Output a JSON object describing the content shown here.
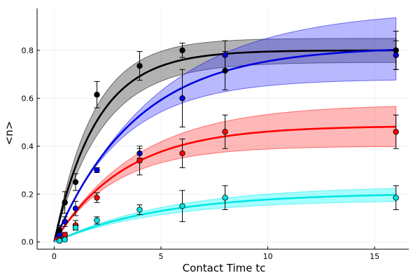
{
  "chart_data": {
    "type": "line",
    "title": "",
    "xlabel": "Contact Time tc",
    "ylabel": "<n>",
    "xlim": [
      -0.8,
      16.6
    ],
    "ylim": [
      -0.03,
      0.975
    ],
    "xticks": [
      0,
      5,
      10,
      15
    ],
    "yticks": [
      0.0,
      0.2,
      0.4,
      0.6,
      0.8
    ],
    "xtick_labels": [
      "0",
      "5",
      "10",
      "15"
    ],
    "ytick_labels": [
      "0.0",
      "0.2",
      "0.4",
      "0.6",
      "0.8"
    ],
    "grid": true,
    "legend": "none",
    "colors": {
      "axis": "#000000",
      "grid": "#e6e6e6"
    },
    "series": [
      {
        "color": "#000000",
        "band_color": "#555555",
        "band_alpha": 0.45,
        "fit": {
          "plateau": 0.8,
          "rate": 0.5
        },
        "band_upper": {
          "plateau": 0.85,
          "rate": 0.55
        },
        "band_lower": {
          "plateau": 0.75,
          "rate": 0.45
        },
        "points": [
          {
            "x": 0.25,
            "y": 0.05,
            "err": 0.02
          },
          {
            "x": 0.5,
            "y": 0.165,
            "err": 0.045
          },
          {
            "x": 1,
            "y": 0.25,
            "err": 0.035
          },
          {
            "x": 2,
            "y": 0.615,
            "err": 0.055
          },
          {
            "x": 4,
            "y": 0.735,
            "err": 0.06
          },
          {
            "x": 6,
            "y": 0.8,
            "err": 0.03
          },
          {
            "x": 8,
            "y": 0.715,
            "err": 0.08
          },
          {
            "x": 16,
            "y": 0.8,
            "err": 0.08
          }
        ]
      },
      {
        "color": "#0000e0",
        "band_color": "#3333ff",
        "band_alpha": 0.35,
        "fit": {
          "plateau": 0.815,
          "rate": 0.26
        },
        "band_upper": {
          "plateau": 0.97,
          "rate": 0.21
        },
        "band_lower": {
          "plateau": 0.68,
          "rate": 0.32
        },
        "points": [
          {
            "x": 0.25,
            "y": 0.03,
            "err": 0.01
          },
          {
            "x": 0.5,
            "y": 0.085,
            "err": 0.02
          },
          {
            "x": 1,
            "y": 0.14,
            "err": 0.03
          },
          {
            "x": 2,
            "y": 0.3,
            "err": 0.01
          },
          {
            "x": 4,
            "y": 0.37,
            "err": 0.02
          },
          {
            "x": 6,
            "y": 0.6,
            "err": 0.12
          },
          {
            "x": 8,
            "y": 0.78,
            "err": 0.06
          },
          {
            "x": 16,
            "y": 0.78,
            "err": 0.06
          }
        ]
      },
      {
        "color": "#ff0000",
        "band_color": "#ff3333",
        "band_alpha": 0.35,
        "fit": {
          "plateau": 0.485,
          "rate": 0.3
        },
        "band_upper": {
          "plateau": 0.575,
          "rate": 0.26
        },
        "band_lower": {
          "plateau": 0.4,
          "rate": 0.35
        },
        "points": [
          {
            "x": 0.25,
            "y": 0.01,
            "err": 0.01
          },
          {
            "x": 0.5,
            "y": 0.03,
            "err": 0.01
          },
          {
            "x": 1,
            "y": 0.07,
            "err": 0.02
          },
          {
            "x": 2,
            "y": 0.185,
            "err": 0.02
          },
          {
            "x": 4,
            "y": 0.34,
            "err": 0.06
          },
          {
            "x": 6,
            "y": 0.37,
            "err": 0.06
          },
          {
            "x": 8,
            "y": 0.46,
            "err": 0.07
          },
          {
            "x": 16,
            "y": 0.46,
            "err": 0.07
          }
        ]
      },
      {
        "color": "#00e5e5",
        "band_color": "#00ffff",
        "band_alpha": 0.35,
        "fit": {
          "plateau": 0.205,
          "rate": 0.2
        },
        "band_upper": {
          "plateau": 0.235,
          "rate": 0.19
        },
        "band_lower": {
          "plateau": 0.175,
          "rate": 0.21
        },
        "points": [
          {
            "x": 0.25,
            "y": 0.005,
            "err": 0.005
          },
          {
            "x": 0.5,
            "y": 0.01,
            "err": 0.005
          },
          {
            "x": 1,
            "y": 0.06,
            "err": 0.01
          },
          {
            "x": 2,
            "y": 0.09,
            "err": 0.015
          },
          {
            "x": 4,
            "y": 0.135,
            "err": 0.02
          },
          {
            "x": 6,
            "y": 0.15,
            "err": 0.065
          },
          {
            "x": 8,
            "y": 0.185,
            "err": 0.05
          },
          {
            "x": 16,
            "y": 0.185,
            "err": 0.05
          }
        ]
      }
    ]
  }
}
